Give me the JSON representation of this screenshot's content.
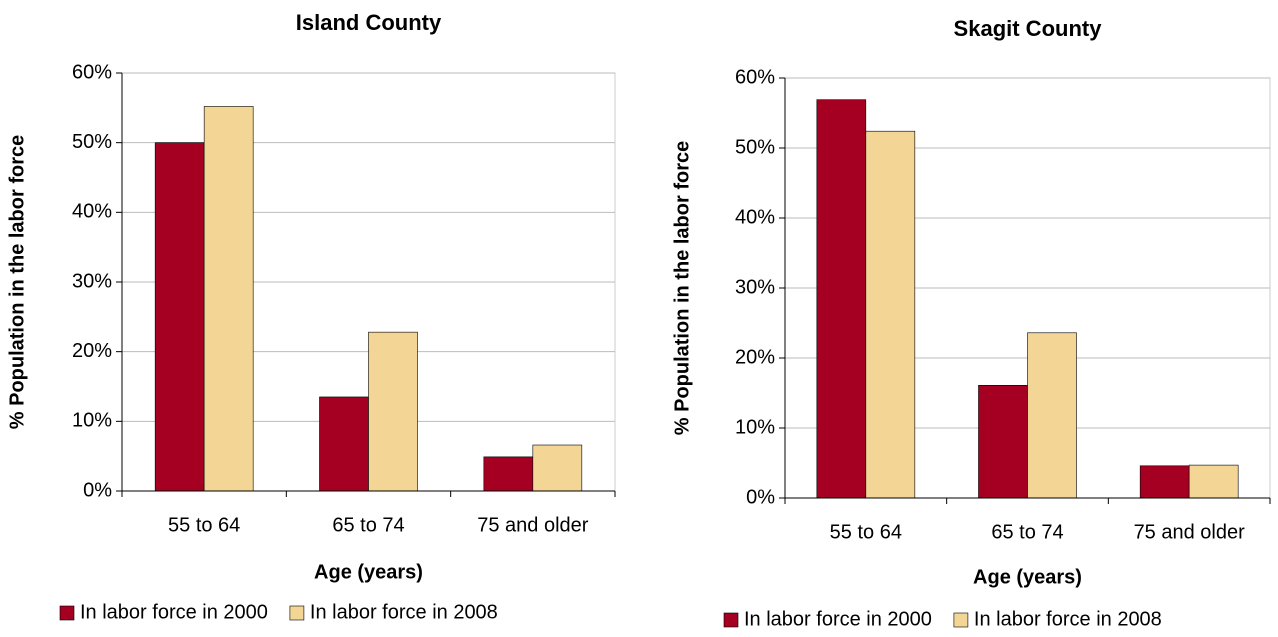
{
  "chart_data": [
    {
      "type": "bar",
      "title": "Island County",
      "x_label": "Age (years)",
      "y_label": "% Population in the labor force",
      "categories": [
        "55 to 64",
        "65 to 74",
        "75 and older"
      ],
      "series": [
        {
          "name": "In labor force in 2000",
          "color": "#a50021",
          "values": [
            50,
            13.5,
            4.9
          ]
        },
        {
          "name": "In labor force in 2008",
          "color": "#f3d595",
          "values": [
            55.2,
            22.8,
            6.6
          ]
        }
      ],
      "ylim": [
        0,
        60
      ],
      "yticks": [
        {
          "value": 0,
          "label": "0%"
        },
        {
          "value": 10,
          "label": "10%"
        },
        {
          "value": 20,
          "label": "20%"
        },
        {
          "value": 30,
          "label": "30%"
        },
        {
          "value": 40,
          "label": "40%"
        },
        {
          "value": 50,
          "label": "50%"
        },
        {
          "value": 60,
          "label": "60%"
        }
      ],
      "grid": true,
      "legend": "bottom"
    },
    {
      "type": "bar",
      "title": "Skagit County",
      "x_label": "Age (years)",
      "y_label": "% Population in the labor force",
      "categories": [
        "55 to 64",
        "65 to 74",
        "75 and older"
      ],
      "series": [
        {
          "name": "In labor force in 2000",
          "color": "#a50021",
          "values": [
            56.9,
            16.1,
            4.6
          ]
        },
        {
          "name": "In labor force in 2008",
          "color": "#f3d595",
          "values": [
            52.4,
            23.6,
            4.7
          ]
        }
      ],
      "ylim": [
        0,
        60
      ],
      "yticks": [
        {
          "value": 0,
          "label": "0%"
        },
        {
          "value": 10,
          "label": "10%"
        },
        {
          "value": 20,
          "label": "20%"
        },
        {
          "value": 30,
          "label": "30%"
        },
        {
          "value": 40,
          "label": "40%"
        },
        {
          "value": 50,
          "label": "50%"
        },
        {
          "value": 60,
          "label": "60%"
        }
      ],
      "grid": true,
      "legend": "bottom"
    }
  ]
}
